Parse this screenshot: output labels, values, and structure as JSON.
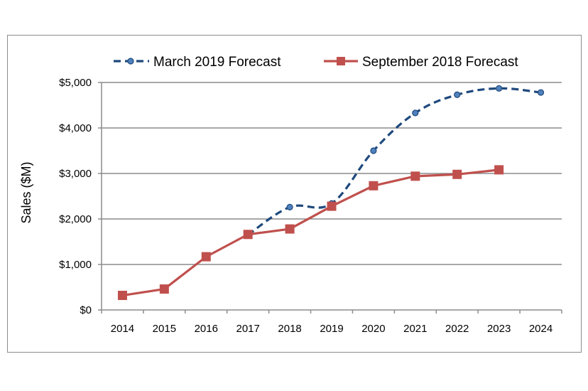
{
  "chart_data": {
    "type": "line",
    "title": "",
    "xlabel": "",
    "ylabel": "Sales ($M)",
    "categories": [
      "2014",
      "2015",
      "2016",
      "2017",
      "2018",
      "2019",
      "2020",
      "2021",
      "2022",
      "2023",
      "2024"
    ],
    "ylim": [
      0,
      5000
    ],
    "yticks": [
      0,
      1000,
      2000,
      3000,
      4000,
      5000
    ],
    "ytick_labels": [
      "$0",
      "$1,000",
      "$2,000",
      "$3,000",
      "$4,000",
      "$5,000"
    ],
    "grid": "horizontal",
    "legend_position": "top",
    "series": [
      {
        "name": "March 2019 Forecast",
        "color": "#1f497d",
        "marker_color": "#4f81bd",
        "style": "dashed",
        "marker": "circle",
        "values": [
          null,
          null,
          null,
          1650,
          2260,
          2340,
          3500,
          4330,
          4730,
          4870,
          4780
        ]
      },
      {
        "name": "September 2018 Forecast",
        "color": "#c0504d",
        "style": "solid",
        "marker": "square",
        "values": [
          320,
          460,
          1170,
          1660,
          1780,
          2280,
          2730,
          2940,
          2980,
          3080,
          null
        ]
      }
    ]
  }
}
